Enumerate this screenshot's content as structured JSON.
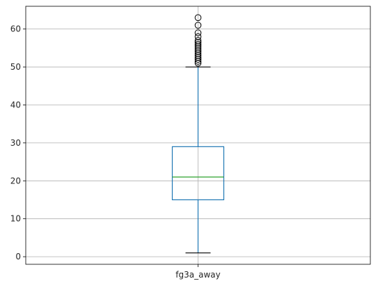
{
  "chart_data": {
    "type": "box",
    "categories": [
      "fg3a_away"
    ],
    "ylim": [
      -2,
      66
    ],
    "yticks": [
      0,
      10,
      20,
      30,
      40,
      50,
      60
    ],
    "grid": true,
    "box": {
      "whisker_low": 1,
      "q1": 15,
      "median": 21,
      "q3": 29,
      "whisker_high": 50,
      "outliers": [
        51,
        51.5,
        52,
        52.5,
        53,
        53.5,
        54,
        54.5,
        55,
        55.5,
        56,
        56.5,
        57,
        58,
        59,
        61,
        63
      ]
    },
    "colors": {
      "box": "#1f77b4",
      "median": "#2ca02c",
      "whisker_cap": "#000000",
      "grid": "#b0b0b0",
      "axes": "#000000"
    }
  }
}
